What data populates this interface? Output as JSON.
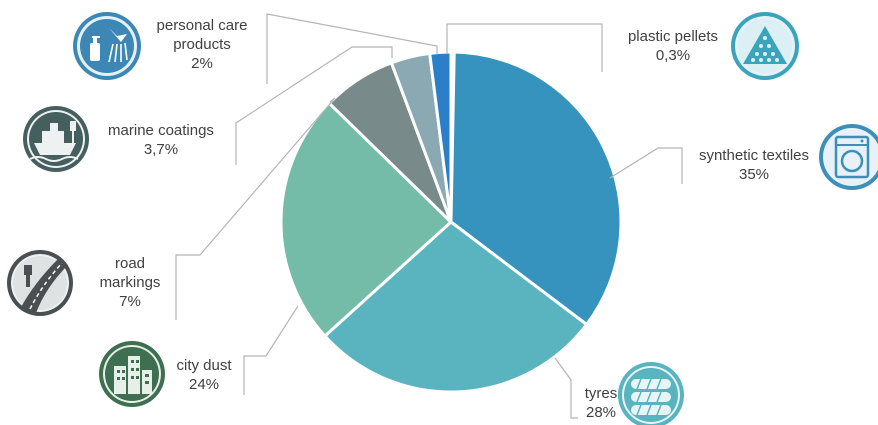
{
  "chart_data": {
    "type": "pie",
    "title": "",
    "categories": [
      "plastic pellets",
      "synthetic textiles",
      "tyres",
      "city dust",
      "road markings",
      "marine coatings",
      "personal care products"
    ],
    "values": [
      0.3,
      35,
      28,
      24,
      7,
      3.7,
      2
    ],
    "value_labels": [
      "0,3%",
      "35%",
      "28%",
      "24%",
      "7%",
      "3,7%",
      "2%"
    ],
    "colors": [
      "#2a7fc4",
      "#3593bd",
      "#5ab4c0",
      "#74bba8",
      "#788a89",
      "#8aa9b2",
      "#2b7fc9"
    ],
    "icons": [
      "pellets-pyramid-icon",
      "washing-machine-icon",
      "tyres-stack-icon",
      "city-buildings-icon",
      "road-paintbrush-icon",
      "ship-paintbrush-icon",
      "shower-bottle-icon"
    ]
  },
  "labels": {
    "pellets": {
      "name": "plastic pellets",
      "value": "0,3%"
    },
    "textiles": {
      "name": "synthetic textiles",
      "value": "35%"
    },
    "tyres": {
      "name": "tyres",
      "value": "28%"
    },
    "dust": {
      "name": "city dust",
      "value": "24%"
    },
    "road": {
      "line1": "road",
      "line2": "markings",
      "value": "7%"
    },
    "marine": {
      "name": "marine coatings",
      "value": "3,7%"
    },
    "care": {
      "line1": "personal care",
      "line2": "products",
      "value": "2%"
    }
  }
}
